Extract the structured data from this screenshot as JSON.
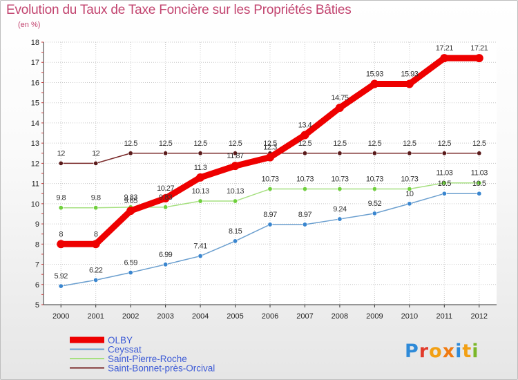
{
  "title": "Evolution du Taux de Taxe Foncière sur les Propriétés Bâties",
  "unit_label": "(en %)",
  "logo": {
    "text": "Proxiti",
    "letter_colors": [
      "#2e8ad8",
      "#e23b2b",
      "#f2a014",
      "#f07a10",
      "#2e8ad8",
      "#f2a014",
      "#7ab728"
    ]
  },
  "chart_data": {
    "type": "line",
    "x": [
      "2000",
      "2001",
      "2002",
      "2003",
      "2004",
      "2005",
      "2006",
      "2007",
      "2008",
      "2009",
      "2010",
      "2011",
      "2012"
    ],
    "ylim": [
      5,
      18
    ],
    "yticks": [
      5,
      6,
      7,
      8,
      9,
      10,
      11,
      12,
      13,
      14,
      15,
      16,
      17,
      18
    ],
    "grid": true,
    "legend_position": "bottom-left",
    "series": [
      {
        "name": "OLBY",
        "color": "#ee0000",
        "marker": "#ee0000",
        "values": [
          8,
          8,
          9.65,
          10.27,
          11.3,
          11.87,
          12.3,
          13.4,
          14.75,
          15.93,
          15.93,
          17.21,
          17.21
        ],
        "labels": [
          "8",
          "8",
          "9.65",
          "10.27",
          "11.3",
          "11.87",
          "12.3",
          "13.4",
          "14.75",
          "15.93",
          "15.93",
          "17.21",
          "17.21"
        ]
      },
      {
        "name": "Ceyssat",
        "color": "#6b9fcf",
        "marker": "#3a86cf",
        "values": [
          5.92,
          6.22,
          6.59,
          6.99,
          7.41,
          8.15,
          8.97,
          8.97,
          9.24,
          9.52,
          10,
          10.5,
          10.5
        ],
        "labels": [
          "5.92",
          "6.22",
          "6.59",
          "6.99",
          "7.41",
          "8.15",
          "8.97",
          "8.97",
          "9.24",
          "9.52",
          "10",
          "10.5",
          "10.5"
        ]
      },
      {
        "name": "Saint-Pierre-Roche",
        "color": "#a6e080",
        "marker": "#6fcf3c",
        "values": [
          9.8,
          9.8,
          9.83,
          9.83,
          10.13,
          10.13,
          10.73,
          10.73,
          10.73,
          10.73,
          10.73,
          11.03,
          11.03
        ],
        "labels": [
          "9.8",
          "9.8",
          "9.83",
          "9.83",
          "10.13",
          "10.13",
          "10.73",
          "10.73",
          "10.73",
          "10.73",
          "10.73",
          "11.03",
          "11.03"
        ]
      },
      {
        "name": "Saint-Bonnet-près-Orcival",
        "color": "#7a2a2a",
        "marker": "#5a1a1a",
        "values": [
          12,
          12,
          12.5,
          12.5,
          12.5,
          12.5,
          12.5,
          12.5,
          12.5,
          12.5,
          12.5,
          12.5,
          12.5
        ],
        "labels": [
          "12",
          "12",
          "12.5",
          "12.5",
          "12.5",
          "12.5",
          "12.5",
          "12.5",
          "12.5",
          "12.5",
          "12.5",
          "12.5",
          "12.5"
        ]
      }
    ]
  }
}
